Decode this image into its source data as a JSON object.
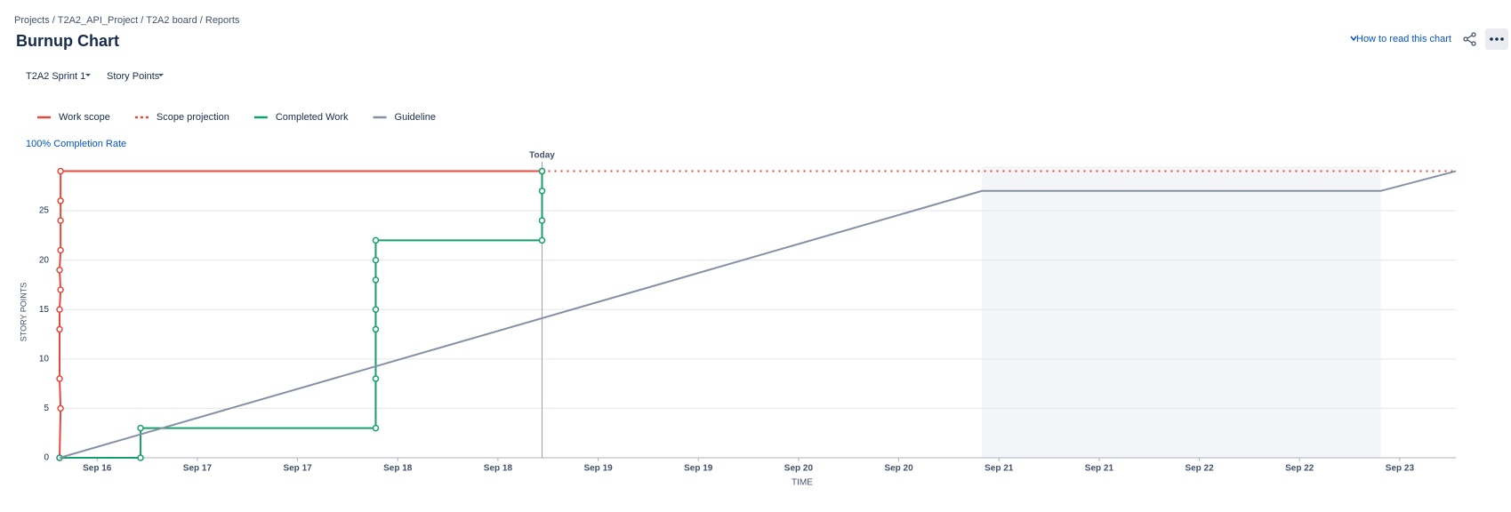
{
  "header": {
    "breadcrumbs": [
      "Projects",
      "T2A2_API_Project",
      "T2A2 board",
      "Reports"
    ],
    "title": "Burnup Chart",
    "help_link": "How to read this chart"
  },
  "filters": [
    "T2A2 Sprint 1",
    "Story Points"
  ],
  "completion_link": "100% Completion Rate",
  "chart_data": {
    "type": "line",
    "x_label": "TIME",
    "y_label": "STORY POINTS",
    "annotation": "Today",
    "today": 4.44,
    "shaded_range": [
      8.83,
      12.81
    ],
    "xlim": [
      -0.375,
      13.56
    ],
    "ylim": [
      0,
      29.5
    ],
    "xticks": [
      {
        "value": 0,
        "label": "Sep 16"
      },
      {
        "value": 1,
        "label": "Sep 17"
      },
      {
        "value": 2,
        "label": "Sep 17"
      },
      {
        "value": 3,
        "label": "Sep 18"
      },
      {
        "value": 4,
        "label": "Sep 18"
      },
      {
        "value": 5,
        "label": "Sep 19"
      },
      {
        "value": 6,
        "label": "Sep 19"
      },
      {
        "value": 7,
        "label": "Sep 20"
      },
      {
        "value": 8,
        "label": "Sep 20"
      },
      {
        "value": 9,
        "label": "Sep 21"
      },
      {
        "value": 10,
        "label": "Sep 21"
      },
      {
        "value": 11,
        "label": "Sep 22"
      },
      {
        "value": 12,
        "label": "Sep 22"
      },
      {
        "value": 13,
        "label": "Sep 23"
      }
    ],
    "yticks": [
      0,
      5,
      10,
      15,
      20,
      25
    ],
    "grid": true,
    "series": [
      {
        "name": "Work scope",
        "color": "#e5493a",
        "dash": false,
        "markers": true,
        "x": [
          -0.375,
          -0.365,
          -0.375,
          -0.375,
          -0.375,
          -0.365,
          -0.375,
          -0.365,
          -0.365,
          -0.365,
          -0.365,
          4.44
        ],
        "values": [
          0,
          5,
          8,
          13,
          15,
          17,
          19,
          21,
          24,
          26,
          29,
          29
        ]
      },
      {
        "name": "Scope projection",
        "color": "#e5493a",
        "dash": true,
        "markers": false,
        "x": [
          4.44,
          13.56
        ],
        "values": [
          29,
          29
        ]
      },
      {
        "name": "Completed Work",
        "color": "#14a06b",
        "dash": false,
        "markers": true,
        "x": [
          -0.375,
          0.433,
          0.433,
          2.78,
          2.78,
          2.78,
          2.78,
          2.78,
          2.78,
          2.78,
          4.44,
          4.44,
          4.44,
          4.44
        ],
        "values": [
          0,
          0,
          3,
          3,
          8,
          13,
          15,
          18,
          20,
          22,
          22,
          24,
          27,
          29
        ]
      },
      {
        "name": "Guideline",
        "color": "#8590a2",
        "dash": false,
        "markers": false,
        "x": [
          -0.375,
          8.83,
          12.81,
          13.56
        ],
        "values": [
          0,
          27,
          27,
          29
        ]
      }
    ]
  }
}
